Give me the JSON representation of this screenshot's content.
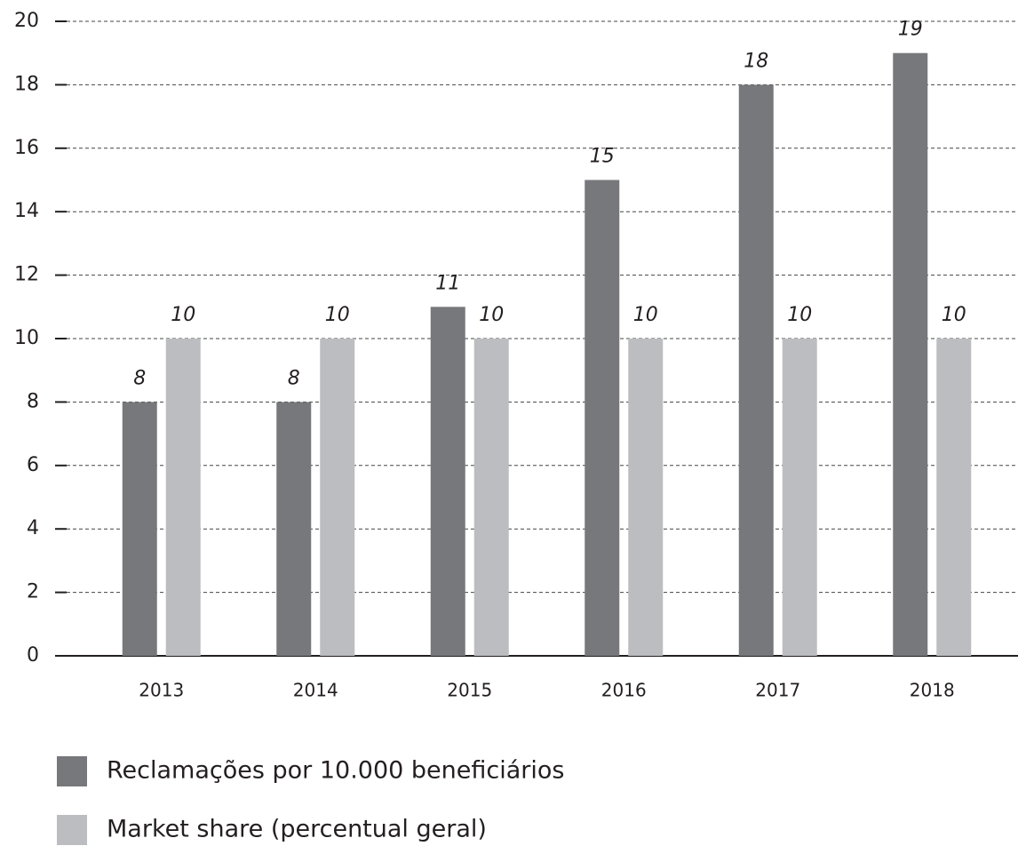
{
  "chart_data": {
    "type": "bar",
    "categories": [
      "2013",
      "2014",
      "2015",
      "2016",
      "2017",
      "2018"
    ],
    "series": [
      {
        "name": "Reclamações por 10.000 beneficiários",
        "color": "#77787b",
        "values": [
          8,
          8,
          11,
          15,
          18,
          19
        ]
      },
      {
        "name": "Market share (percentual geral)",
        "color": "#bcbdc0",
        "values": [
          10,
          10,
          10,
          10,
          10,
          10
        ]
      }
    ],
    "ylim": [
      0,
      20
    ],
    "yticks": [
      0,
      2,
      4,
      6,
      8,
      10,
      12,
      14,
      16,
      18,
      20
    ],
    "grid": true,
    "legend": "bottom"
  }
}
